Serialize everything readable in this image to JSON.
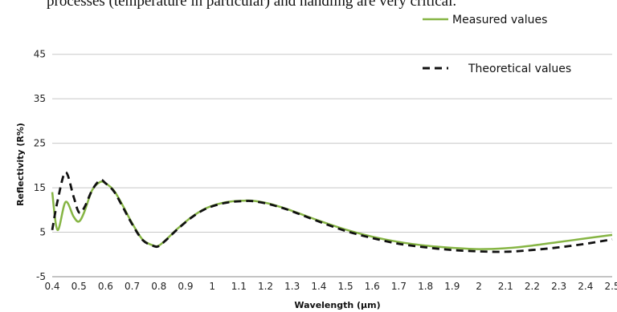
{
  "caption": "processes (temperature in particular) and handling are very critical.",
  "colors": {
    "measured": "#86b544",
    "theoretical": "#111111",
    "grid": "#c8c8c8",
    "axis": "#888888"
  },
  "chart_data": {
    "type": "line",
    "title": "",
    "xlabel": "Wavelength (µm)",
    "ylabel": "Reflectivity (R%)",
    "xlim": [
      0.4,
      2.5
    ],
    "ylim": [
      -5,
      50
    ],
    "grid": true,
    "legend_position": "top-right",
    "x_ticks": [
      0.4,
      0.5,
      0.6,
      0.7,
      0.8,
      0.9,
      1,
      1.1,
      1.2,
      1.3,
      1.4,
      1.5,
      1.6,
      1.7,
      1.8,
      1.9,
      2,
      2.1,
      2.2,
      2.3,
      2.4,
      2.5
    ],
    "x_tick_labels": [
      "0.4",
      "0.5",
      "0.6",
      "0.7",
      "0.8",
      "0.9",
      "1",
      "1.1",
      "1.2",
      "1.3",
      "1.4",
      "1.5",
      "1.6",
      "1.7",
      "1.8",
      "1.9",
      "2",
      "2.1",
      "2.2",
      "2.3",
      "2.4",
      "2.5"
    ],
    "y_ticks": [
      -5,
      5,
      15,
      25,
      35,
      45
    ],
    "y_tick_labels": [
      "-5",
      "5",
      "15",
      "25",
      "35",
      "45"
    ],
    "series": [
      {
        "name": "Measured values",
        "style": "solid",
        "x": [
          0.4,
          0.42,
          0.45,
          0.48,
          0.5,
          0.52,
          0.55,
          0.58,
          0.6,
          0.63,
          0.66,
          0.7,
          0.74,
          0.78,
          0.8,
          0.83,
          0.87,
          0.92,
          0.97,
          1.02,
          1.07,
          1.12,
          1.15,
          1.2,
          1.25,
          1.3,
          1.4,
          1.5,
          1.6,
          1.7,
          1.8,
          1.9,
          2.0,
          2.1,
          2.2,
          2.3,
          2.4,
          2.5
        ],
        "values": [
          14,
          5.5,
          11.8,
          8.5,
          7.4,
          9.5,
          14.5,
          16.3,
          16.0,
          14.5,
          11.5,
          7.0,
          3.3,
          2.0,
          2.0,
          3.5,
          5.8,
          8.3,
          10.2,
          11.3,
          11.9,
          12.1,
          12.1,
          11.6,
          10.8,
          9.8,
          7.6,
          5.6,
          4.0,
          2.8,
          2.0,
          1.5,
          1.2,
          1.4,
          2.0,
          2.8,
          3.6,
          4.4
        ]
      },
      {
        "name": "Theoretical values",
        "style": "dashed",
        "x": [
          0.4,
          0.42,
          0.45,
          0.48,
          0.5,
          0.52,
          0.55,
          0.58,
          0.6,
          0.63,
          0.66,
          0.7,
          0.74,
          0.78,
          0.8,
          0.83,
          0.87,
          0.92,
          0.97,
          1.02,
          1.07,
          1.12,
          1.15,
          1.2,
          1.25,
          1.3,
          1.4,
          1.5,
          1.6,
          1.7,
          1.8,
          1.9,
          2.0,
          2.1,
          2.2,
          2.3,
          2.4,
          2.5
        ],
        "values": [
          5.5,
          12.0,
          18.5,
          13.0,
          9.5,
          10.5,
          14.5,
          16.7,
          16.0,
          14.3,
          11.2,
          6.8,
          3.2,
          1.9,
          1.9,
          3.4,
          5.7,
          8.2,
          10.1,
          11.2,
          11.8,
          12.0,
          12.0,
          11.5,
          10.7,
          9.7,
          7.4,
          5.3,
          3.7,
          2.4,
          1.6,
          1.0,
          0.7,
          0.6,
          1.0,
          1.6,
          2.4,
          3.4
        ]
      }
    ]
  }
}
